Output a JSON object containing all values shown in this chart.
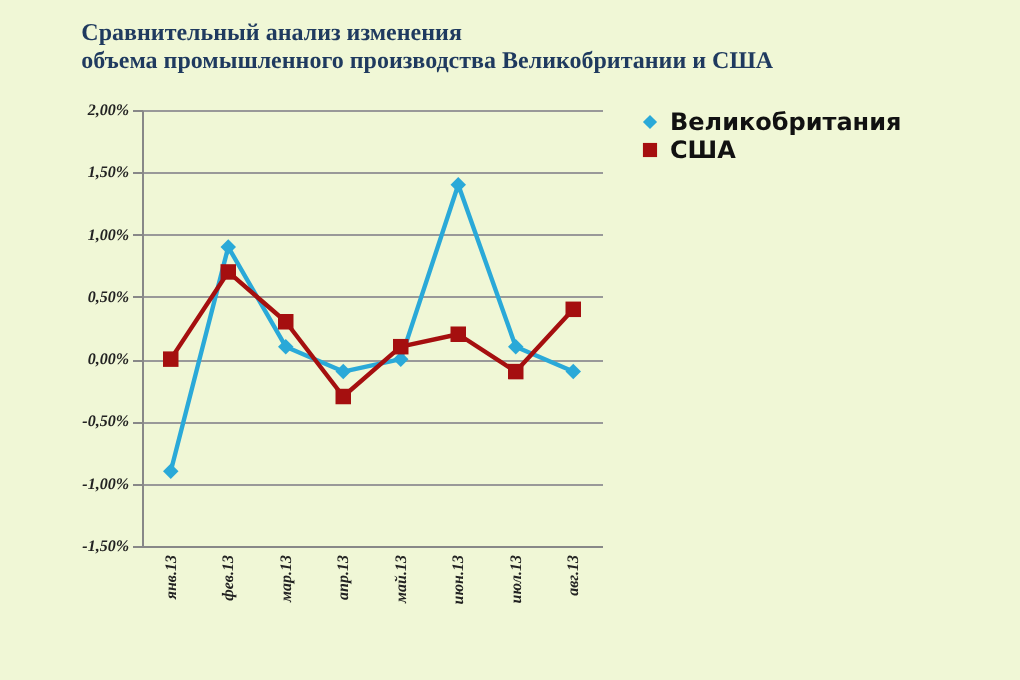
{
  "chart_data": {
    "type": "line",
    "title": "Сравнительный анализ изменения\nобъема промышленного производства Великобритании и США",
    "categories": [
      "янв.13",
      "фев.13",
      "мар.13",
      "апр.13",
      "май.13",
      "июн.13",
      "июл.13",
      "авг.13"
    ],
    "series": [
      {
        "name": "Великобритания",
        "color": "#2aa9d8",
        "marker": "diamond",
        "values": [
          -0.9,
          0.9,
          0.1,
          -0.1,
          0,
          1.4,
          0.1,
          -0.1
        ]
      },
      {
        "name": "США",
        "color": "#a50f0f",
        "marker": "square",
        "values": [
          0,
          0.7,
          0.3,
          -0.3,
          0.1,
          0.2,
          -0.1,
          0.4
        ]
      }
    ],
    "ylim": [
      -1.5,
      2
    ],
    "yticks": [
      {
        "value": -1.5,
        "label": "-1,50%"
      },
      {
        "value": -1,
        "label": "-1,00%"
      },
      {
        "value": -0.5,
        "label": "-0,50%"
      },
      {
        "value": 0,
        "label": "0,00%"
      },
      {
        "value": 0.5,
        "label": "0,50%"
      },
      {
        "value": 1,
        "label": "1,00%"
      },
      {
        "value": 1.5,
        "label": "1,50%"
      },
      {
        "value": 2,
        "label": "2,00%"
      }
    ],
    "grid": "y",
    "legend": "right",
    "line_style": "solid"
  }
}
